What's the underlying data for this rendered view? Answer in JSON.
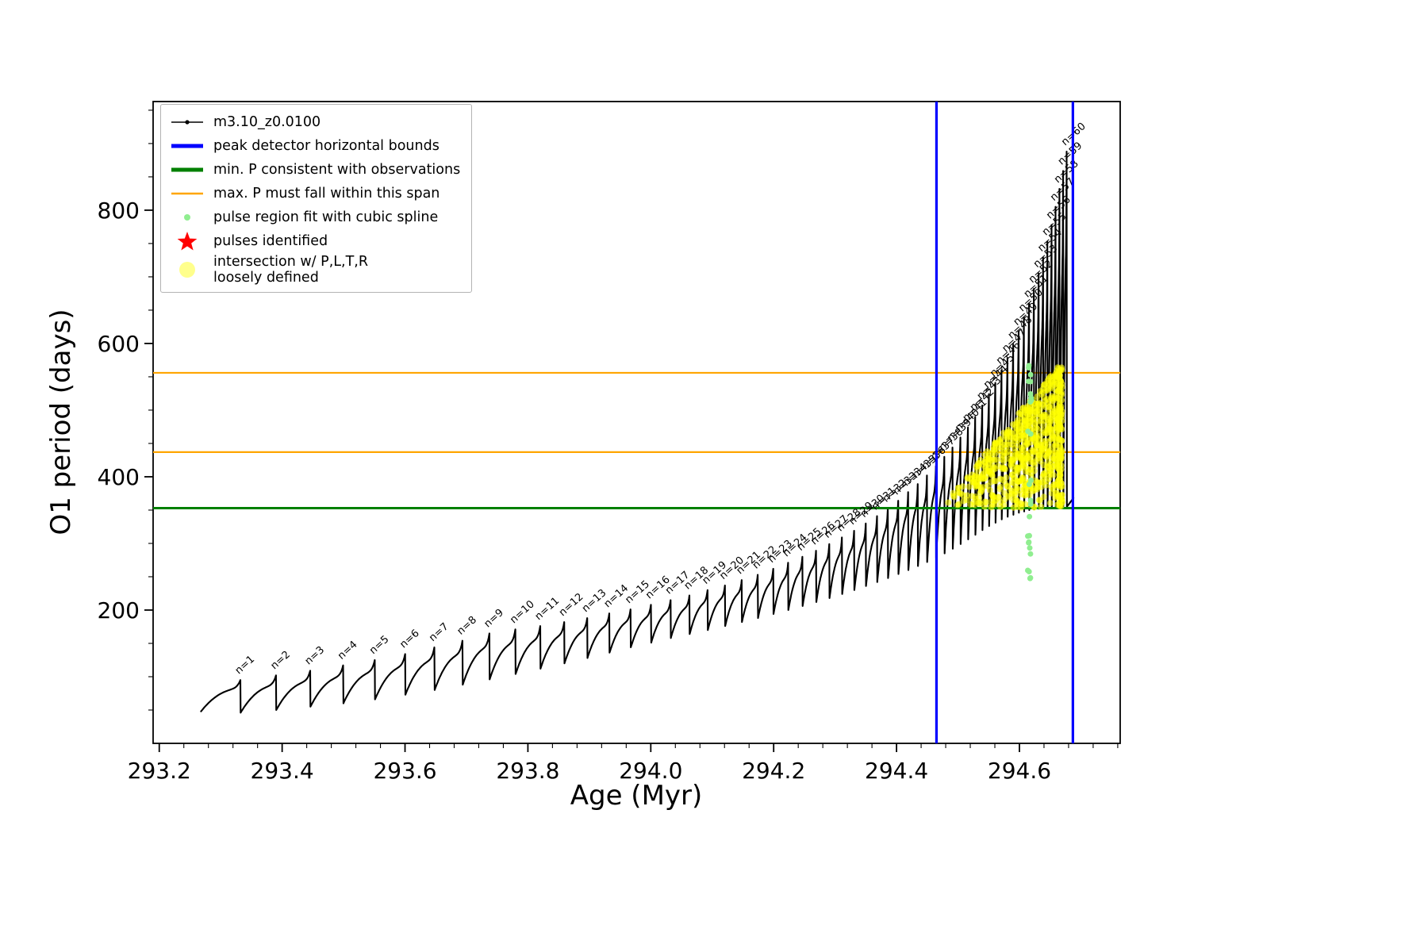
{
  "figure": {
    "background": "#ffffff"
  },
  "axes": {
    "xlabel": "Age (Myr)",
    "ylabel": "O1 period (days)",
    "xlim": [
      293.19,
      294.764
    ],
    "ylim": [
      0,
      963
    ],
    "xticks": [
      293.2,
      293.4,
      293.6,
      293.8,
      294.0,
      294.2,
      294.4,
      294.6
    ],
    "xtick_labels": [
      "293.2",
      "293.4",
      "293.6",
      "293.8",
      "294.0",
      "294.2",
      "294.4",
      "294.6"
    ],
    "yticks": [
      200,
      400,
      600,
      800
    ],
    "ytick_labels": [
      "200",
      "400",
      "600",
      "800"
    ],
    "x_minor_step": 0.04,
    "y_minor_step": 50
  },
  "legend": {
    "entries": [
      {
        "label": "m3.10_z0.0100",
        "marker": "line-dot",
        "color": "#000000",
        "icon": "series-line-icon"
      },
      {
        "label": "peak detector horizontal bounds",
        "marker": "thick-line",
        "color": "#0000ff",
        "icon": "bounds-line-icon"
      },
      {
        "label": "min. P consistent with observations",
        "marker": "thick-line",
        "color": "#008000",
        "icon": "min-period-line-icon"
      },
      {
        "label": "max. P must fall within this span",
        "marker": "thin-line",
        "color": "#ffa500",
        "icon": "max-span-line-icon"
      },
      {
        "label": "pulse region fit with cubic spline",
        "marker": "dot",
        "color": "#90ee90",
        "icon": "spline-dot-icon"
      },
      {
        "label": "pulses identified",
        "marker": "star",
        "color": "#ff0000",
        "icon": "pulse-star-icon"
      },
      {
        "label": "intersection w/ P,L,T,R\nloosely defined",
        "marker": "big-circle",
        "color": "#ffff00",
        "icon": "intersection-circle-icon"
      }
    ]
  },
  "chart_data": {
    "type": "line",
    "series_name": "m3.10_z0.0100",
    "xlabel": "Age (Myr)",
    "ylabel": "O1 period (days)",
    "start_point": {
      "age": 293.268,
      "period": 48
    },
    "end_point": {
      "age": 294.688,
      "period": 368
    },
    "pulses": [
      {
        "n": 1,
        "label": "n=1",
        "age": 293.332,
        "peak": 95,
        "trough": 46
      },
      {
        "n": 2,
        "label": "n=2",
        "age": 293.39,
        "peak": 102,
        "trough": 50
      },
      {
        "n": 3,
        "label": "n=3",
        "age": 293.4457,
        "peak": 109,
        "trough": 55
      },
      {
        "n": 4,
        "label": "n=4",
        "age": 293.4993,
        "peak": 117,
        "trough": 60
      },
      {
        "n": 5,
        "label": "n=5",
        "age": 293.5508,
        "peak": 125,
        "trough": 66
      },
      {
        "n": 6,
        "label": "n=6",
        "age": 293.6002,
        "peak": 134,
        "trough": 73
      },
      {
        "n": 7,
        "label": "n=7",
        "age": 293.6478,
        "peak": 144,
        "trough": 80
      },
      {
        "n": 8,
        "label": "n=8",
        "age": 293.6935,
        "peak": 154,
        "trough": 88
      },
      {
        "n": 9,
        "label": "n=9",
        "age": 293.7374,
        "peak": 165,
        "trough": 96
      },
      {
        "n": 10,
        "label": "n=10",
        "age": 293.7796,
        "peak": 171,
        "trough": 104
      },
      {
        "n": 11,
        "label": "n=11",
        "age": 293.8201,
        "peak": 176,
        "trough": 112
      },
      {
        "n": 12,
        "label": "n=12",
        "age": 293.8591,
        "peak": 182,
        "trough": 120
      },
      {
        "n": 13,
        "label": "n=13",
        "age": 293.8965,
        "peak": 188,
        "trough": 128
      },
      {
        "n": 14,
        "label": "n=14",
        "age": 293.9325,
        "peak": 195,
        "trough": 136
      },
      {
        "n": 15,
        "label": "n=15",
        "age": 293.9671,
        "peak": 201,
        "trough": 144
      },
      {
        "n": 16,
        "label": "n=16",
        "age": 294.0003,
        "peak": 208,
        "trough": 151
      },
      {
        "n": 17,
        "label": "n=17",
        "age": 294.0322,
        "peak": 215,
        "trough": 158
      },
      {
        "n": 18,
        "label": "n=18",
        "age": 294.0629,
        "peak": 222,
        "trough": 164
      },
      {
        "n": 19,
        "label": "n=19",
        "age": 294.0924,
        "peak": 230,
        "trough": 170
      },
      {
        "n": 20,
        "label": "n=20",
        "age": 294.1207,
        "peak": 237,
        "trough": 176
      },
      {
        "n": 21,
        "label": "n=21",
        "age": 294.148,
        "peak": 245,
        "trough": 182
      },
      {
        "n": 22,
        "label": "n=22",
        "age": 294.1741,
        "peak": 253,
        "trough": 188
      },
      {
        "n": 23,
        "label": "n=23",
        "age": 294.1993,
        "peak": 262,
        "trough": 194
      },
      {
        "n": 24,
        "label": "n=24",
        "age": 294.2235,
        "peak": 271,
        "trough": 200
      },
      {
        "n": 25,
        "label": "n=25",
        "age": 294.2467,
        "peak": 280,
        "trough": 206
      },
      {
        "n": 26,
        "label": "n=26",
        "age": 294.269,
        "peak": 289,
        "trough": 212
      },
      {
        "n": 27,
        "label": "n=27",
        "age": 294.2905,
        "peak": 299,
        "trough": 218
      },
      {
        "n": 28,
        "label": "n=28",
        "age": 294.3111,
        "peak": 309,
        "trough": 224
      },
      {
        "n": 29,
        "label": "n=29",
        "age": 294.3309,
        "peak": 319,
        "trough": 230
      },
      {
        "n": 30,
        "label": "n=30",
        "age": 294.3499,
        "peak": 330,
        "trough": 236
      },
      {
        "n": 31,
        "label": "n=31",
        "age": 294.3682,
        "peak": 341,
        "trough": 242
      },
      {
        "n": 32,
        "label": "n=32",
        "age": 294.3858,
        "peak": 353,
        "trough": 248
      },
      {
        "n": 33,
        "label": "n=33",
        "age": 294.4027,
        "peak": 364,
        "trough": 254
      },
      {
        "n": 34,
        "label": "n=34",
        "age": 294.4189,
        "peak": 377,
        "trough": 260
      },
      {
        "n": 35,
        "label": "n=35",
        "age": 294.4345,
        "peak": 389,
        "trough": 266
      },
      {
        "n": 36,
        "label": "n=36",
        "age": 294.4495,
        "peak": 402,
        "trough": 272
      },
      {
        "n": 37,
        "label": "n=37",
        "age": 294.464,
        "peak": 416,
        "trough": 278
      },
      {
        "n": 38,
        "label": "n=38",
        "age": 294.4778,
        "peak": 430,
        "trough": 285
      },
      {
        "n": 39,
        "label": "n=39",
        "age": 294.4911,
        "peak": 444,
        "trough": 292
      },
      {
        "n": 40,
        "label": "n=40",
        "age": 294.5039,
        "peak": 459,
        "trough": 299
      },
      {
        "n": 41,
        "label": "n=41",
        "age": 294.5162,
        "peak": 474,
        "trough": 306
      },
      {
        "n": 42,
        "label": "n=42",
        "age": 294.528,
        "peak": 490,
        "trough": 313
      },
      {
        "n": 43,
        "label": "n=43",
        "age": 294.5394,
        "peak": 507,
        "trough": 320
      },
      {
        "n": 44,
        "label": "n=44",
        "age": 294.5503,
        "peak": 524,
        "trough": 326
      },
      {
        "n": 45,
        "label": "n=45",
        "age": 294.5607,
        "peak": 541,
        "trough": 331
      },
      {
        "n": 46,
        "label": "n=46",
        "age": 294.5708,
        "peak": 560,
        "trough": 336
      },
      {
        "n": 47,
        "label": "n=47",
        "age": 294.5805,
        "peak": 578,
        "trough": 340
      },
      {
        "n": 48,
        "label": "n=48",
        "age": 294.5898,
        "peak": 598,
        "trough": 343
      },
      {
        "n": 49,
        "label": "n=49",
        "age": 294.5987,
        "peak": 618,
        "trough": 346
      },
      {
        "n": 50,
        "label": "n=50",
        "age": 294.6073,
        "peak": 639,
        "trough": 348
      },
      {
        "n": 51,
        "label": "n=51",
        "age": 294.6156,
        "peak": 660,
        "trough": 350
      },
      {
        "n": 52,
        "label": "n=52",
        "age": 294.6235,
        "peak": 682,
        "trough": 351
      },
      {
        "n": 53,
        "label": "n=53",
        "age": 294.6312,
        "peak": 705,
        "trough": 352
      },
      {
        "n": 54,
        "label": "n=54",
        "age": 294.6385,
        "peak": 729,
        "trough": 353
      },
      {
        "n": 55,
        "label": "n=55",
        "age": 294.6455,
        "peak": 753,
        "trough": 353
      },
      {
        "n": 56,
        "label": "n=56",
        "age": 294.6523,
        "peak": 778,
        "trough": 354
      },
      {
        "n": 57,
        "label": "n=57",
        "age": 294.6588,
        "peak": 805,
        "trough": 354
      },
      {
        "n": 58,
        "label": "n=58",
        "age": 294.6651,
        "peak": 832,
        "trough": 354
      },
      {
        "n": 59,
        "label": "n=59",
        "age": 294.6711,
        "peak": 859,
        "trough": 355
      },
      {
        "n": 60,
        "label": "n=60",
        "age": 294.6768,
        "peak": 888,
        "trough": 355
      }
    ],
    "overlays": {
      "peak_detector_bounds_x": [
        294.465,
        294.687
      ],
      "min_period_line_y": 353,
      "max_period_span_y": [
        437,
        556
      ],
      "spline_scatter": {
        "age_center": 294.617,
        "age_jitter": 0.0035,
        "period_low": 235,
        "period_mid": 420,
        "period_high": 540,
        "count": 26
      },
      "yellow_region": {
        "age_range": [
          294.47,
          294.662
        ],
        "period_min": 353,
        "period_max_at_end": 565,
        "column_age": [
          294.6615,
          294.6695
        ],
        "column_period": [
          355,
          565
        ],
        "count_wedge": 620,
        "count_column": 130
      },
      "scatter_seed": 987654
    },
    "colors": {
      "series": "#000000",
      "peak_bounds": "#0000ff",
      "min_period": "#008000",
      "max_span": "#ffa500",
      "spline": "#90ee90",
      "pulses_star": "#ff0000",
      "intersection": "#ffff00"
    }
  }
}
